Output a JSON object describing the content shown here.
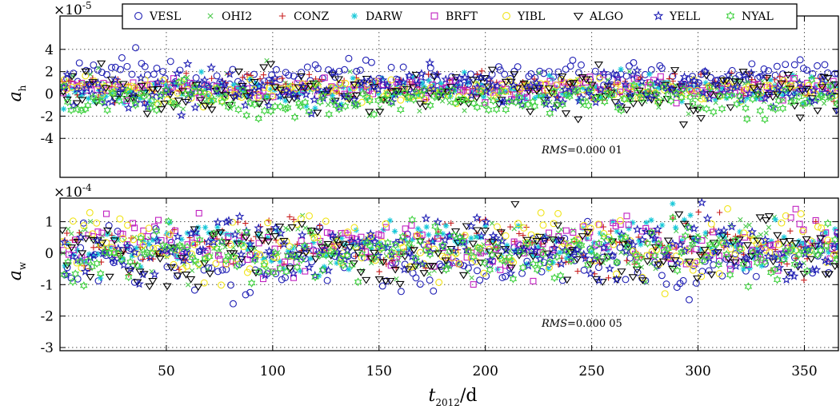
{
  "chart_data": [
    {
      "type": "scatter",
      "panel": "top",
      "ylabel": "a",
      "ylabel_sub": "h",
      "exponent_base": "×10",
      "exponent_power": "-5",
      "y_ticks": [
        "4",
        "2",
        "0",
        "-2",
        "-4"
      ],
      "y_tick_values": [
        4,
        2,
        0,
        -2,
        -4
      ],
      "ylim": [
        -7.5,
        7.0
      ],
      "xlim": [
        0,
        366
      ],
      "grid": true,
      "rms_prefix": "RMS",
      "rms_value": "=0.000 01",
      "series_profile": [
        {
          "name": "VESL",
          "mean": 1.6,
          "spread": 0.9
        },
        {
          "name": "OHI2",
          "mean": 0.2,
          "spread": 1.1
        },
        {
          "name": "CONZ",
          "mean": 0.7,
          "spread": 0.8
        },
        {
          "name": "DARW",
          "mean": 0.3,
          "spread": 0.8
        },
        {
          "name": "BRFT",
          "mean": 0.5,
          "spread": 0.6
        },
        {
          "name": "YIBL",
          "mean": 0.3,
          "spread": 0.7
        },
        {
          "name": "ALGO",
          "mean": 0.2,
          "spread": 1.5
        },
        {
          "name": "YELL",
          "mean": 0.4,
          "spread": 1.2
        },
        {
          "name": "NYAL",
          "mean": -0.6,
          "spread": 1.0
        }
      ]
    },
    {
      "type": "scatter",
      "panel": "bottom",
      "ylabel": "a",
      "ylabel_sub": "w",
      "exponent_base": "×10",
      "exponent_power": "-4",
      "y_ticks": [
        "1",
        "0",
        "-1",
        "-2",
        "-3"
      ],
      "y_tick_values": [
        1,
        0,
        -1,
        -2,
        -3
      ],
      "ylim": [
        -3.1,
        1.75
      ],
      "xlim": [
        0,
        366
      ],
      "grid": true,
      "rms_prefix": "RMS",
      "rms_value": "=0.000 05",
      "series_profile": [
        {
          "name": "VESL",
          "mean": -0.3,
          "spread": 0.6
        },
        {
          "name": "OHI2",
          "mean": 0.2,
          "spread": 0.5
        },
        {
          "name": "CONZ",
          "mean": 0.3,
          "spread": 0.6
        },
        {
          "name": "DARW",
          "mean": 0.3,
          "spread": 0.5
        },
        {
          "name": "BRFT",
          "mean": 0.2,
          "spread": 0.5
        },
        {
          "name": "YIBL",
          "mean": 0.2,
          "spread": 0.6
        },
        {
          "name": "ALGO",
          "mean": 0.0,
          "spread": 0.7
        },
        {
          "name": "YELL",
          "mean": 0.2,
          "spread": 0.6
        },
        {
          "name": "NYAL",
          "mean": 0.0,
          "spread": 0.5
        }
      ]
    }
  ],
  "x_axis": {
    "label_main": "t",
    "label_sub": "2012",
    "label_unit": "/d",
    "ticks": [
      "50",
      "100",
      "150",
      "200",
      "250",
      "300",
      "350"
    ],
    "tick_values": [
      50,
      100,
      150,
      200,
      250,
      300,
      350
    ]
  },
  "legend": {
    "placement": "top",
    "items": [
      {
        "name": "VESL",
        "marker": "circle",
        "color": "#1f1fb4"
      },
      {
        "name": "OHI2",
        "marker": "x",
        "color": "#4cc94c"
      },
      {
        "name": "CONZ",
        "marker": "plus",
        "color": "#c81e1e"
      },
      {
        "name": "DARW",
        "marker": "star",
        "color": "#17c8d8"
      },
      {
        "name": "BRFT",
        "marker": "square",
        "color": "#c020c0"
      },
      {
        "name": "YIBL",
        "marker": "circle",
        "color": "#f0e418"
      },
      {
        "name": "ALGO",
        "marker": "triangle-down",
        "color": "#000000"
      },
      {
        "name": "YELL",
        "marker": "pentagram",
        "color": "#1f1fb4"
      },
      {
        "name": "NYAL",
        "marker": "hexagram",
        "color": "#3fd13f"
      }
    ]
  }
}
